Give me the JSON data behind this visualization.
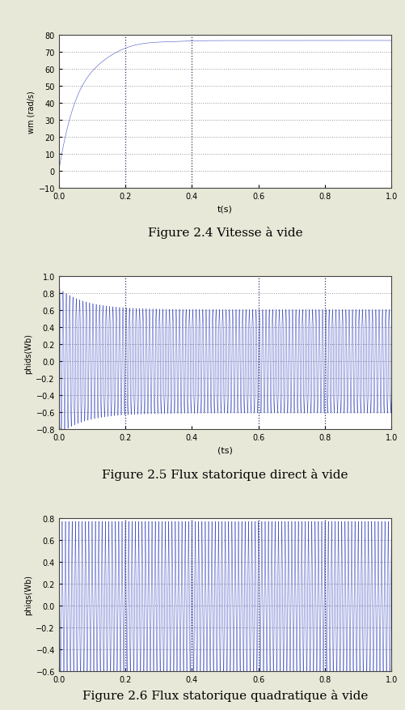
{
  "fig_width": 5.02,
  "fig_height": 8.78,
  "dpi": 100,
  "bg_color": "#e8e8d8",
  "plot_bg_color": "#ffffff",
  "line_color": "#3344bb",
  "grid_color": "#999999",
  "vgrid_color": "#333366",
  "plot1": {
    "ylabel": "wm (rad/s)",
    "xlabel": "t(s)",
    "ylim": [
      -10,
      80
    ],
    "xlim": [
      0,
      1
    ],
    "yticks": [
      -10,
      0,
      10,
      20,
      30,
      40,
      50,
      60,
      70,
      80
    ],
    "xticks": [
      0,
      0.2,
      0.4,
      0.6,
      0.8,
      1
    ],
    "vlines": [
      0.2,
      0.4
    ],
    "caption": "Figure 2.4 Vitesse à vide"
  },
  "plot2": {
    "ylabel": "phids(Wb)",
    "xlabel": "(ts)",
    "ylim": [
      -0.8,
      1.0
    ],
    "xlim": [
      0,
      1
    ],
    "yticks": [
      -0.8,
      -0.6,
      -0.4,
      -0.2,
      0,
      0.2,
      0.4,
      0.6,
      0.8,
      1.0
    ],
    "xticks": [
      0,
      0.2,
      0.4,
      0.6,
      0.8,
      1
    ],
    "vlines": [
      0.2,
      0.6,
      0.8
    ],
    "caption": "Figure 2.5 Flux statorique direct à vide"
  },
  "plot3": {
    "ylabel": "phiqs(Wb)",
    "xlabel": "",
    "ylim": [
      -0.6,
      0.8
    ],
    "xlim": [
      0,
      1
    ],
    "yticks": [
      -0.6,
      -0.4,
      -0.2,
      0,
      0.2,
      0.4,
      0.6,
      0.8
    ],
    "xticks": [
      0,
      0.2,
      0.4,
      0.6,
      0.8,
      1
    ],
    "vlines": [
      0.2,
      0.4,
      0.6,
      0.8
    ],
    "caption": "Figure 2.6 Flux statorique quadratique à vide"
  },
  "N_points": 10000,
  "speed_tau": 0.09,
  "speed_max": 79.0,
  "flux_freq": 157.0,
  "flux_amp_ds": 0.65,
  "flux_amp_qs": 0.65
}
